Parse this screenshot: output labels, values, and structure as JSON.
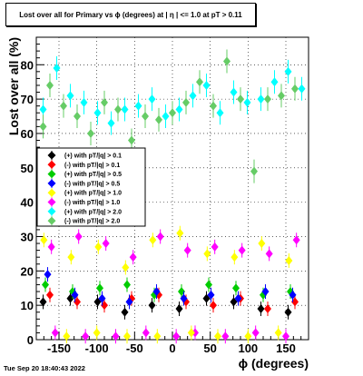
{
  "chart_data": {
    "type": "scatter",
    "title": "Lost over all for Primary vs ϕ (degrees) at |  η | <= 1.0 at pT > 0.11",
    "xlabel": "ϕ (degrees)",
    "ylabel": "Lost over all (%)",
    "xlim": [
      -180,
      180
    ],
    "ylim": [
      0,
      88
    ],
    "x_ticks": [
      -150,
      -100,
      -50,
      0,
      50,
      100,
      150
    ],
    "y_ticks": [
      0,
      10,
      20,
      30,
      40,
      50,
      60,
      70,
      80
    ],
    "grid": true,
    "legend_position": "left-middle",
    "series": [
      {
        "name": "(+) with pT/|q| > 0.1",
        "color": "#000000",
        "x": [
          -171,
          -135,
          -99,
          -63,
          -27,
          9,
          45,
          81,
          117,
          153
        ],
        "y": [
          11,
          12,
          11,
          8,
          10,
          9,
          12,
          11,
          9,
          8
        ]
      },
      {
        "name": "(-) with pT/|q| > 0.1",
        "color": "#ff0000",
        "x": [
          -162,
          -126,
          -90,
          -54,
          -18,
          18,
          54,
          90,
          126,
          162
        ],
        "y": [
          13,
          11,
          10,
          12,
          13,
          11,
          10,
          12,
          9,
          11
        ]
      },
      {
        "name": "(+) with pT/|q| > 0.5",
        "color": "#00cc00",
        "x": [
          -168,
          -132,
          -96,
          -60,
          -24,
          12,
          48,
          84,
          120,
          156
        ],
        "y": [
          16,
          14,
          15,
          16,
          13,
          14,
          16,
          15,
          13,
          14
        ]
      },
      {
        "name": "(-) with pT/|q| > 0.5",
        "color": "#0000ff",
        "x": [
          -165,
          -129,
          -93,
          -57,
          -21,
          15,
          51,
          87,
          123,
          159
        ],
        "y": [
          19,
          13,
          12,
          11,
          14,
          12,
          13,
          12,
          14,
          13
        ]
      },
      {
        "name": "(+) with pT/|q| > 1.0",
        "color": "#ffff00",
        "x": [
          -170,
          -134,
          -98,
          -62,
          -26,
          10,
          46,
          82,
          118,
          154
        ],
        "y": [
          29,
          24,
          27,
          21,
          29,
          31,
          25,
          24,
          28,
          23
        ]
      },
      {
        "name": "(-) with pT/|q| > 1.0",
        "color": "#ff00ff",
        "x": [
          -160,
          -124,
          -88,
          -52,
          -16,
          20,
          56,
          92,
          128,
          164
        ],
        "y": [
          27,
          30,
          28,
          24,
          30,
          26,
          27,
          26,
          25,
          29
        ]
      },
      {
        "name": "(+) with pT/|q| > 2.0",
        "color": "#00ffff",
        "x": [
          -171,
          -153,
          -135,
          -117,
          -99,
          -81,
          -63,
          -45,
          -27,
          -9,
          9,
          27,
          45,
          63,
          81,
          99,
          117,
          135,
          153,
          171
        ],
        "y": [
          67,
          79,
          71,
          69,
          66,
          63,
          67,
          68,
          70,
          65,
          67,
          71,
          74,
          66,
          72,
          69,
          70,
          75,
          78,
          73
        ]
      },
      {
        "name": "(-) with pT/|q| > 2.0",
        "color": "#66cc66",
        "x": [
          -171,
          -162,
          -144,
          -126,
          -108,
          -90,
          -72,
          -54,
          -36,
          -18,
          0,
          18,
          36,
          54,
          72,
          90,
          108,
          126,
          144,
          162
        ],
        "y": [
          62,
          74,
          68,
          65,
          60,
          69,
          67,
          58,
          65,
          64,
          66,
          69,
          75,
          68,
          81,
          70,
          49,
          70,
          71,
          73
        ]
      },
      {
        "name": "",
        "color": "#ff00ff",
        "x": [
          -155,
          -115,
          -75,
          -35,
          5,
          30,
          70,
          110,
          150
        ],
        "y": [
          2,
          1,
          1,
          2,
          1,
          2,
          1,
          2,
          1
        ]
      },
      {
        "name": "",
        "color": "#ffff00",
        "x": [
          -140,
          -100,
          -60,
          -20,
          25,
          60,
          100,
          140
        ],
        "y": [
          1,
          2,
          1,
          1,
          2,
          1,
          1,
          2
        ]
      }
    ]
  },
  "timestamp": "Tue Sep 20 18:40:43 2022"
}
